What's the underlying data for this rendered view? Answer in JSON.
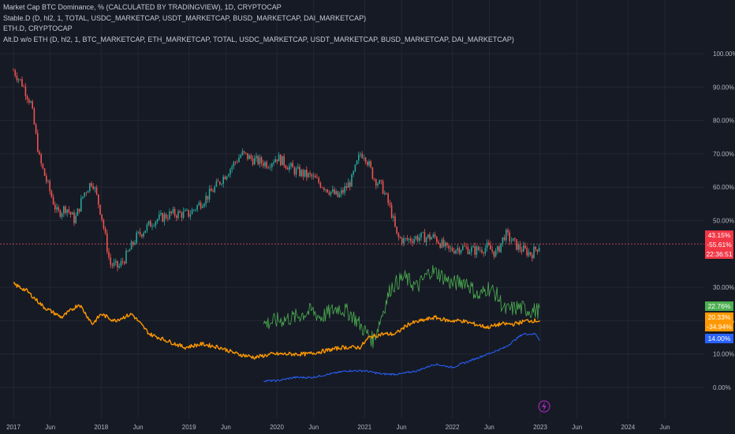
{
  "legend": [
    "Market Cap BTC Dominance, % (CALCULATED BY TRADINGVIEW), 1D, CRYPTOCAP",
    "Stable.D (D, hl2, 1, TOTAL, USDC_MARKETCAP, USDT_MARKETCAP, BUSD_MARKETCAP, DAI_MARKETCAP)",
    "ETH.D, CRYPTOCAP",
    "Alt.D w/o ETH (D, hl2, 1, BTC_MARKETCAP, ETH_MARKETCAP, TOTAL, USDC_MARKETCAP, USDT_MARKETCAP, BUSD_MARKETCAP, DAI_MARKETCAP)"
  ],
  "labels": {
    "btc_price": "43.15%",
    "btc_change": "-55.61%",
    "countdown": "22:36:51",
    "alt_price": "22.76%",
    "eth_price": "20.33%",
    "eth_change": "-34.94%",
    "stable_price": "14.00%"
  },
  "colors": {
    "background": "#161a25",
    "grid": "#232733",
    "btc_up": "#26a69a",
    "btc_down": "#ef5350",
    "eth": "#ff9800",
    "alt": "#4caf50",
    "stable": "#2962ff",
    "price_line": "#ef5350",
    "lightning": "#9c27b0"
  },
  "icons": {
    "event": "lightning-icon"
  },
  "chart_data": {
    "type": "line",
    "title": "Market Cap BTC Dominance, % (CALCULATED BY TRADINGVIEW), 1D, CRYPTOCAP",
    "y_ticks": [
      "100.00%",
      "90.00%",
      "80.00%",
      "70.00%",
      "60.00%",
      "50.00%",
      "30.00%",
      "20.00%",
      "10.00%",
      "0.00%"
    ],
    "x_ticks": [
      "2017",
      "Jun",
      "2018",
      "Jun",
      "2019",
      "Jun",
      "2020",
      "Jun",
      "2021",
      "Jun",
      "2022",
      "Jun",
      "2023",
      "Jun",
      "2024",
      "Jun"
    ],
    "ylim": [
      0,
      100
    ],
    "xlim": [
      2017.0,
      2024.85
    ],
    "series": [
      {
        "name": "Market Cap BTC Dominance",
        "style": "candles",
        "x": [
          2017.0,
          2017.1,
          2017.2,
          2017.3,
          2017.4,
          2017.5,
          2017.6,
          2017.7,
          2017.8,
          2017.9,
          2018.0,
          2018.1,
          2018.2,
          2018.3,
          2018.4,
          2018.6,
          2018.8,
          2019.0,
          2019.2,
          2019.3,
          2019.45,
          2019.6,
          2019.75,
          2019.9,
          2020.0,
          2020.2,
          2020.4,
          2020.55,
          2020.7,
          2020.85,
          2020.95,
          2021.0,
          2021.1,
          2021.2,
          2021.3,
          2021.37,
          2021.45,
          2021.6,
          2021.8,
          2021.95,
          2022.1,
          2022.25,
          2022.4,
          2022.5,
          2022.6,
          2022.75,
          2022.9,
          2023.0
        ],
        "y": [
          95,
          91,
          85,
          68,
          60,
          52,
          54,
          50,
          58,
          62,
          52,
          37,
          36,
          40,
          45,
          50,
          52,
          52,
          57,
          60,
          65,
          70,
          68,
          67,
          69,
          65,
          63,
          60,
          57,
          62,
          70,
          70,
          63,
          60,
          53,
          45,
          44,
          45,
          45,
          41,
          42,
          41,
          42,
          40,
          46,
          42,
          40,
          43
        ]
      },
      {
        "name": "ETH.D",
        "x": [
          2017.0,
          2017.15,
          2017.35,
          2017.55,
          2017.75,
          2017.9,
          2018.0,
          2018.15,
          2018.35,
          2018.55,
          2018.75,
          2018.95,
          2019.15,
          2019.35,
          2019.55,
          2019.75,
          2019.95,
          2020.15,
          2020.35,
          2020.55,
          2020.75,
          2020.95,
          2021.05,
          2021.2,
          2021.35,
          2021.5,
          2021.65,
          2021.8,
          2021.95,
          2022.1,
          2022.25,
          2022.4,
          2022.55,
          2022.7,
          2022.85,
          2023.0
        ],
        "y": [
          31,
          29,
          24,
          21,
          25,
          19,
          22,
          20,
          22,
          16,
          14,
          12,
          13,
          12,
          10,
          9,
          10,
          10,
          10,
          11,
          12,
          12,
          15,
          16,
          16,
          19,
          20,
          21,
          20,
          20,
          19,
          18,
          19,
          19,
          20,
          20
        ]
      },
      {
        "name": "Alt.D w/o ETH",
        "x": [
          2019.85,
          2020.0,
          2020.2,
          2020.4,
          2020.5,
          2020.7,
          2020.85,
          2021.0,
          2021.1,
          2021.2,
          2021.3,
          2021.45,
          2021.6,
          2021.75,
          2021.85,
          2022.0,
          2022.15,
          2022.3,
          2022.4,
          2022.5,
          2022.6,
          2022.75,
          2022.9,
          2023.0
        ],
        "y": [
          19,
          20,
          21,
          23,
          21,
          24,
          22,
          17,
          14,
          22,
          30,
          33,
          30,
          35,
          34,
          31,
          32,
          27,
          30,
          28,
          23,
          24,
          23,
          23
        ]
      },
      {
        "name": "Stable.D",
        "x": [
          2019.85,
          2020.0,
          2020.2,
          2020.4,
          2020.6,
          2020.8,
          2021.0,
          2021.2,
          2021.4,
          2021.6,
          2021.8,
          2022.0,
          2022.2,
          2022.4,
          2022.6,
          2022.8,
          2022.95,
          2023.0
        ],
        "y": [
          2,
          2,
          3,
          3,
          4,
          5,
          5,
          4,
          4,
          5,
          7,
          6,
          8,
          10,
          12,
          16,
          16,
          14
        ]
      }
    ]
  }
}
